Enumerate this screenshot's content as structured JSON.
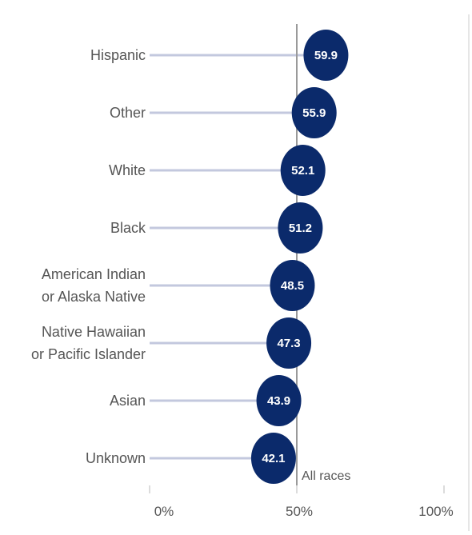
{
  "chart_data": {
    "type": "scatter",
    "subtype": "lollipop",
    "categories": [
      [
        "Hispanic"
      ],
      [
        "Other"
      ],
      [
        "White"
      ],
      [
        "Black"
      ],
      [
        "American Indian",
        "or Alaska Native"
      ],
      [
        "Native Hawaiian",
        "or Pacific Islander"
      ],
      [
        "Asian"
      ],
      [
        "Unknown"
      ]
    ],
    "values": [
      59.9,
      55.9,
      52.1,
      51.2,
      48.5,
      47.3,
      43.9,
      42.1
    ],
    "value_labels": [
      "59.9",
      "55.9",
      "52.1",
      "51.2",
      "48.5",
      "47.3",
      "43.9",
      "42.1"
    ],
    "xlim": [
      0,
      100
    ],
    "x_ticks": [
      0,
      50,
      100
    ],
    "x_tick_labels": [
      "0%",
      "50%",
      "100%"
    ],
    "reference_line": {
      "value": 50,
      "label": "All races"
    },
    "grid": false,
    "colors": {
      "dot": "#0b2a6b",
      "stem": "#c3c8de",
      "reference_line": "#9a9a9a",
      "axis_tick": "#d0d0d0",
      "right_border": "#dddddd"
    }
  }
}
